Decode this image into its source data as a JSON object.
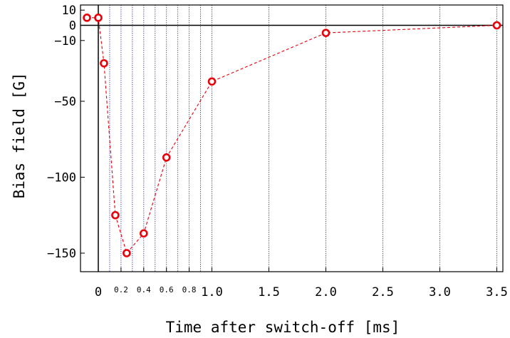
{
  "chart_data": {
    "type": "scatter",
    "title": "",
    "xlabel": "Time after switch-off [ms]",
    "ylabel": "Bias field [G]",
    "xlim": [
      -0.12,
      3.55
    ],
    "ylim": [
      -163,
      14
    ],
    "grid": "vertical dotted lines at x tick positions",
    "legend": "none",
    "x_ticks": [
      {
        "value": 0,
        "label": "0",
        "size": "large"
      },
      {
        "value": 0.2,
        "label": "0.2",
        "size": "small"
      },
      {
        "value": 0.4,
        "label": "0.4",
        "size": "small"
      },
      {
        "value": 0.6,
        "label": "0.6",
        "size": "small"
      },
      {
        "value": 0.8,
        "label": "0.8",
        "size": "small"
      },
      {
        "value": 1.0,
        "label": "1.0",
        "size": "large"
      },
      {
        "value": 1.5,
        "label": "1.5",
        "size": "large"
      },
      {
        "value": 2.0,
        "label": "2.0",
        "size": "large"
      },
      {
        "value": 2.5,
        "label": "2.5",
        "size": "large"
      },
      {
        "value": 3.0,
        "label": "3.0",
        "size": "large"
      },
      {
        "value": 3.5,
        "label": "3.5",
        "size": "large"
      }
    ],
    "x_gridlines": [
      0.1,
      0.2,
      0.3,
      0.4,
      0.5,
      0.6,
      0.7,
      0.8,
      0.9,
      1.0,
      1.5,
      2.0,
      2.5,
      3.0,
      3.5
    ],
    "y_ticks": [
      {
        "value": 10,
        "label": "10"
      },
      {
        "value": 0,
        "label": "0"
      },
      {
        "value": -10,
        "label": "−10"
      },
      {
        "value": -50,
        "label": "−50"
      },
      {
        "value": -100,
        "label": "−100"
      },
      {
        "value": -150,
        "label": "−150"
      }
    ],
    "series": [
      {
        "color": "#e8000b",
        "line_style": "dashed",
        "marker": "open circle",
        "x": [
          -0.1,
          0.0,
          0.05,
          0.15,
          0.25,
          0.4,
          0.6,
          1.0,
          2.0,
          3.5
        ],
        "y": [
          5,
          5,
          -25,
          -125,
          -150,
          -137,
          -87,
          -37,
          -5,
          0
        ]
      }
    ]
  }
}
